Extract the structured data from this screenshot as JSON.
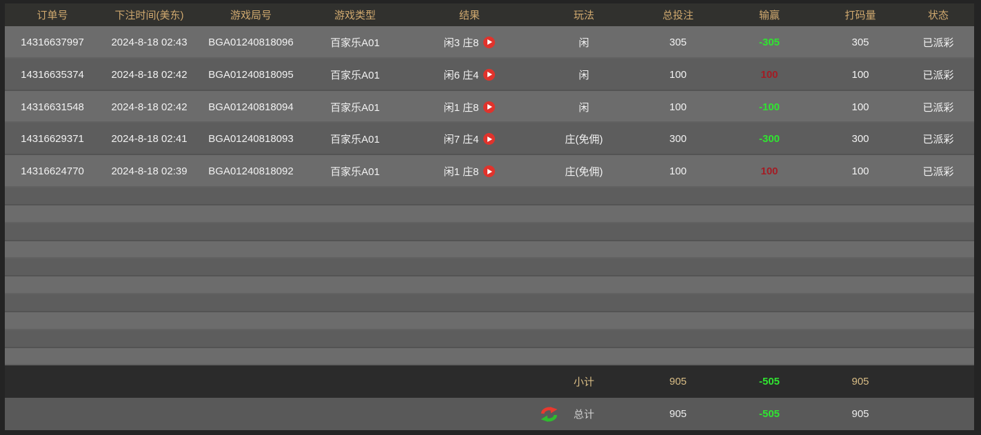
{
  "table": {
    "columns": [
      {
        "key": "order_id",
        "label": "订单号"
      },
      {
        "key": "bet_time",
        "label": "下注时间(美东)"
      },
      {
        "key": "round_id",
        "label": "游戏局号"
      },
      {
        "key": "game_type",
        "label": "游戏类型"
      },
      {
        "key": "result",
        "label": "结果"
      },
      {
        "key": "play",
        "label": "玩法"
      },
      {
        "key": "total_bet",
        "label": "总投注"
      },
      {
        "key": "win_loss",
        "label": "输赢"
      },
      {
        "key": "turnover",
        "label": "打码量"
      },
      {
        "key": "status",
        "label": "状态"
      }
    ],
    "rows": [
      {
        "order_id": "14316637997",
        "bet_time": "2024-8-18 02:43",
        "round_id": "BGA01240818096",
        "game_type": "百家乐A01",
        "result": "闲3 庄8",
        "play": "闲",
        "total_bet": "305",
        "win_loss": "-305",
        "win_loss_type": "loss",
        "turnover": "305",
        "status": "已派彩"
      },
      {
        "order_id": "14316635374",
        "bet_time": "2024-8-18 02:42",
        "round_id": "BGA01240818095",
        "game_type": "百家乐A01",
        "result": "闲6 庄4",
        "play": "闲",
        "total_bet": "100",
        "win_loss": "100",
        "win_loss_type": "win",
        "turnover": "100",
        "status": "已派彩"
      },
      {
        "order_id": "14316631548",
        "bet_time": "2024-8-18 02:42",
        "round_id": "BGA01240818094",
        "game_type": "百家乐A01",
        "result": "闲1 庄8",
        "play": "闲",
        "total_bet": "100",
        "win_loss": "-100",
        "win_loss_type": "loss",
        "turnover": "100",
        "status": "已派彩"
      },
      {
        "order_id": "14316629371",
        "bet_time": "2024-8-18 02:41",
        "round_id": "BGA01240818093",
        "game_type": "百家乐A01",
        "result": "闲7 庄4",
        "play": "庄(免佣)",
        "total_bet": "300",
        "win_loss": "-300",
        "win_loss_type": "loss",
        "turnover": "300",
        "status": "已派彩"
      },
      {
        "order_id": "14316624770",
        "bet_time": "2024-8-18 02:39",
        "round_id": "BGA01240818092",
        "game_type": "百家乐A01",
        "result": "闲1 庄8",
        "play": "庄(免佣)",
        "total_bet": "100",
        "win_loss": "100",
        "win_loss_type": "win",
        "turnover": "100",
        "status": "已派彩"
      }
    ],
    "empty_row_count": 10,
    "subtotal": {
      "label": "小计",
      "total_bet": "905",
      "win_loss": "-505",
      "win_loss_type": "loss",
      "turnover": "905"
    },
    "total": {
      "label": "总计",
      "total_bet": "905",
      "win_loss": "-505",
      "win_loss_type": "loss",
      "turnover": "905"
    }
  },
  "icons": {
    "play": "play-icon",
    "refresh": "refresh-icon"
  },
  "colors": {
    "loss_green": "#30e431",
    "win_red": "#a31c24",
    "header_gold": "#d0a96f",
    "subtotal_gold": "#d9bd85",
    "play_button_red": "#e0332c"
  }
}
